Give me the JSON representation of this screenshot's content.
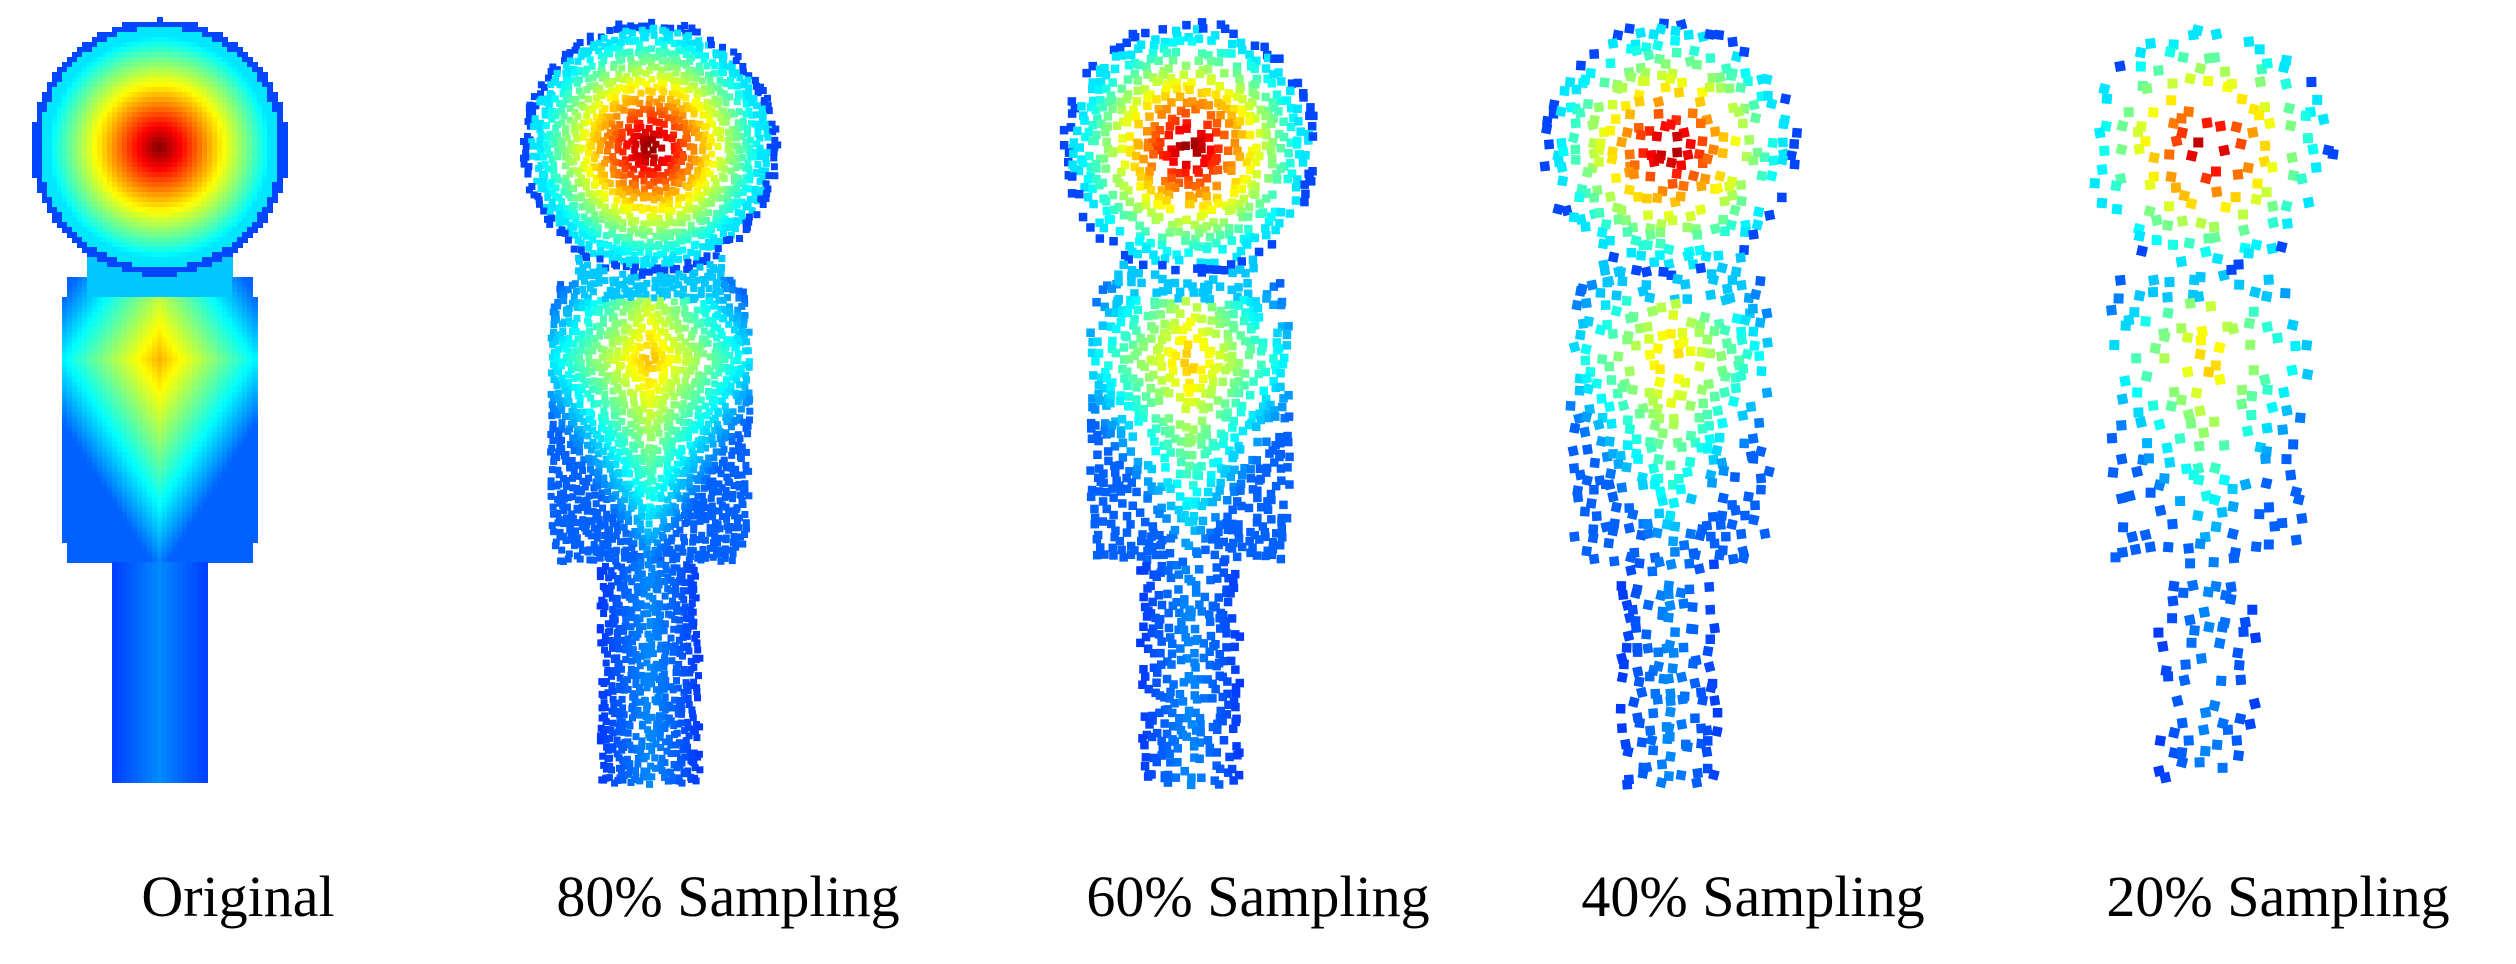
{
  "figure": {
    "colormap": [
      "#00008f",
      "#0000ff",
      "#0080ff",
      "#00ffff",
      "#80ff80",
      "#ffff00",
      "#ff8000",
      "#ff0000",
      "#800000"
    ],
    "panels": [
      {
        "caption": "Original",
        "sampling_percent": 100
      },
      {
        "caption": "80% Sampling",
        "sampling_percent": 80
      },
      {
        "caption": "60% Sampling",
        "sampling_percent": 60
      },
      {
        "caption": "40% Sampling",
        "sampling_percent": 40
      },
      {
        "caption": "20% Sampling",
        "sampling_percent": 20
      }
    ]
  }
}
